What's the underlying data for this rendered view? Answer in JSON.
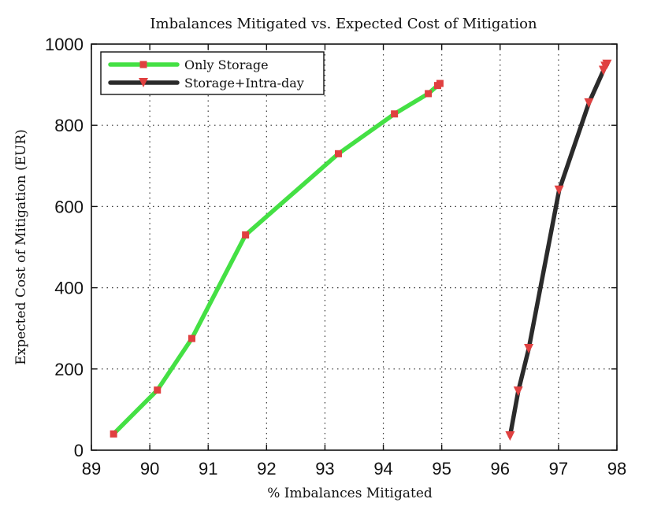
{
  "chart_data": {
    "type": "line",
    "title": "Imbalances Mitigated vs. Expected Cost of Mitigation",
    "xlabel": "% Imbalances Mitigated",
    "ylabel": "Expected Cost of Mitigation (EUR)",
    "xlim": [
      89,
      98
    ],
    "ylim": [
      0,
      1000
    ],
    "xticks": [
      "89",
      "90",
      "91",
      "92",
      "93",
      "94",
      "95",
      "96",
      "97",
      "98"
    ],
    "yticks": [
      "0",
      "200",
      "400",
      "600",
      "800",
      "1000"
    ],
    "grid": true,
    "legend_position": "top-left",
    "series": [
      {
        "name": "Only Storage",
        "color": "#44e044",
        "marker": "square",
        "marker_color": "#e04040",
        "x": [
          89.38,
          90.13,
          90.72,
          91.64,
          93.23,
          94.19,
          94.77,
          94.93,
          94.97
        ],
        "y": [
          40,
          148,
          275,
          530,
          730,
          828,
          878,
          898,
          903
        ]
      },
      {
        "name": "Storage+Intra-day",
        "color": "#2b2b2b",
        "marker": "triangle-down",
        "marker_color": "#e04040",
        "x": [
          96.17,
          96.31,
          96.49,
          97.01,
          97.52,
          97.77,
          97.8,
          97.83
        ],
        "y": [
          35,
          145,
          250,
          640,
          855,
          935,
          945,
          950
        ]
      }
    ]
  }
}
